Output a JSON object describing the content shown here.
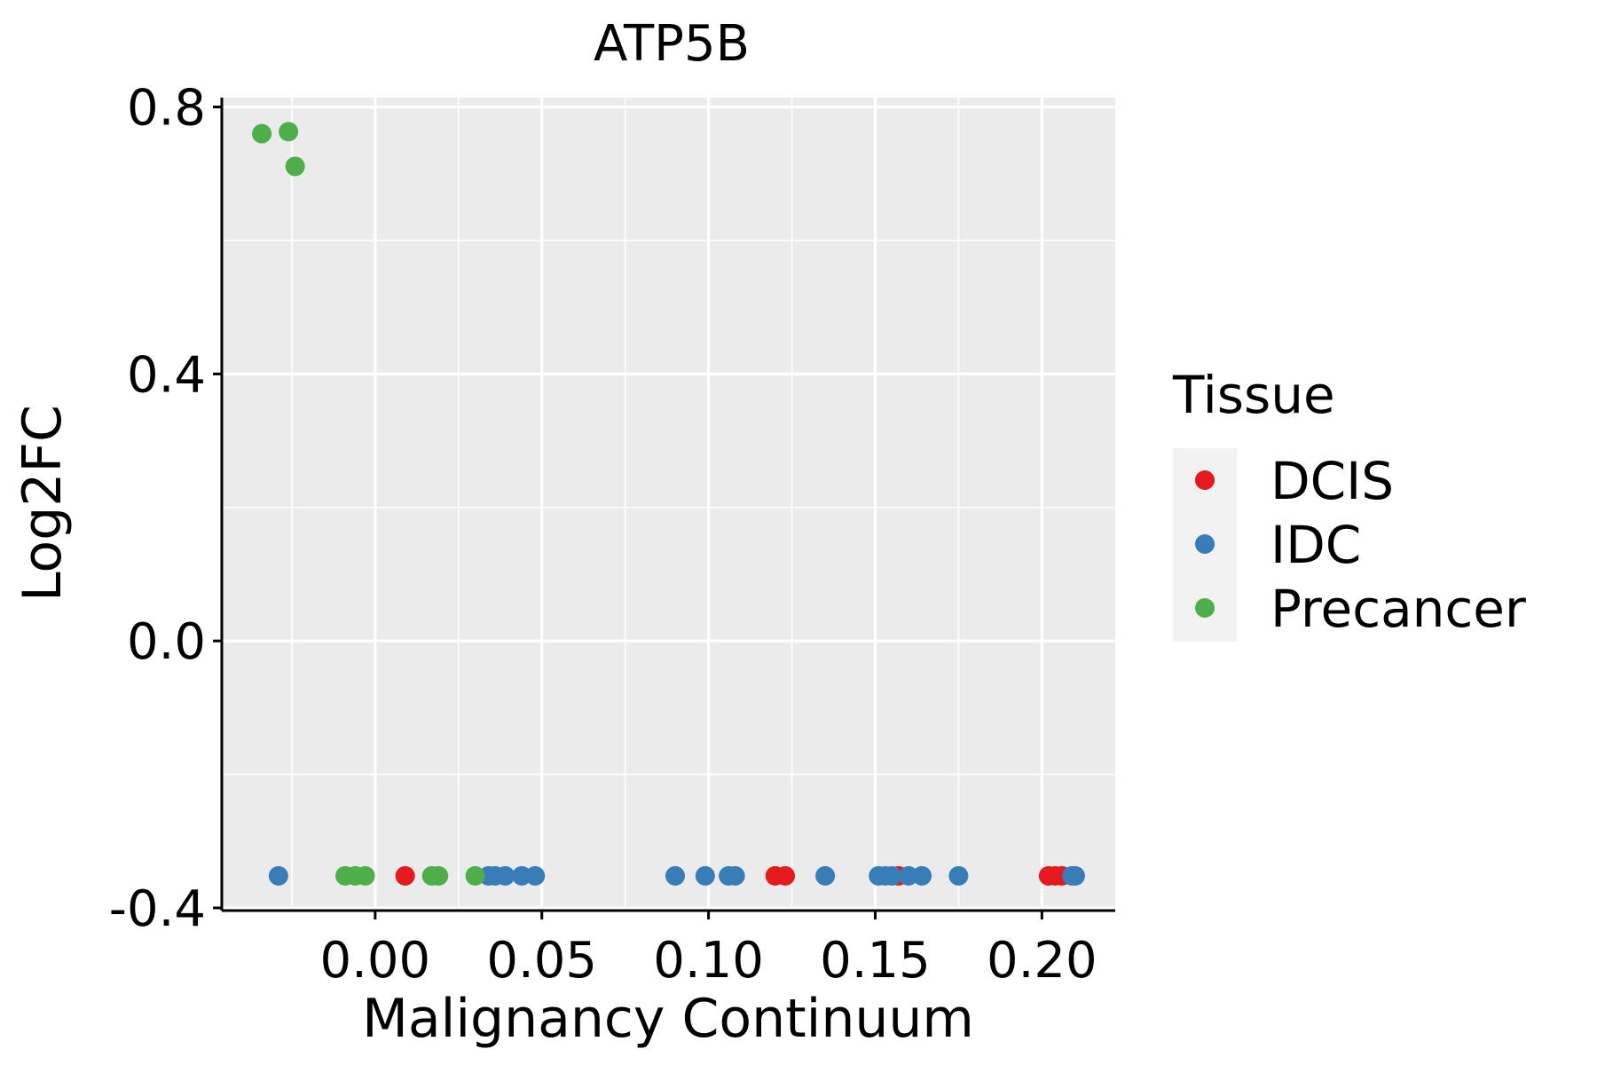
{
  "chart_data": {
    "type": "scatter",
    "title": "ATP5B",
    "xlabel": "Malignancy Continuum",
    "ylabel": "Log2FC",
    "xlim": [
      -0.046,
      0.222
    ],
    "ylim": [
      -0.404,
      0.814
    ],
    "x_ticks": [
      0.0,
      0.05,
      0.1,
      0.15,
      0.2
    ],
    "x_tick_labels": [
      "0.00",
      "0.05",
      "0.10",
      "0.15",
      "0.20"
    ],
    "y_ticks": [
      -0.4,
      0.0,
      0.4,
      0.8
    ],
    "y_tick_labels": [
      "-0.4",
      "0.0",
      "0.4",
      "0.8"
    ],
    "x_minor_ticks": [
      -0.025,
      0.025,
      0.075,
      0.125,
      0.175
    ],
    "y_minor_ticks": [
      -0.2,
      0.2,
      0.6
    ],
    "grid": true,
    "panel_background": "#ebebeb",
    "grid_color": "#ffffff",
    "legend": {
      "title": "Tissue",
      "position": "right",
      "background": "#f2f2f2"
    },
    "series": [
      {
        "name": "DCIS",
        "color": "#e41a1c",
        "x": [
          0.009,
          0.12,
          0.123,
          0.157,
          0.202,
          0.204,
          0.206
        ],
        "y": [
          -0.352,
          -0.352,
          -0.352,
          -0.352,
          -0.352,
          -0.352,
          -0.352
        ]
      },
      {
        "name": "IDC",
        "color": "#377eb8",
        "x": [
          -0.029,
          0.034,
          0.036,
          0.039,
          0.044,
          0.048,
          0.09,
          0.099,
          0.106,
          0.108,
          0.135,
          0.151,
          0.153,
          0.155,
          0.16,
          0.164,
          0.175,
          0.209,
          0.21
        ],
        "y": [
          -0.352,
          -0.352,
          -0.352,
          -0.352,
          -0.352,
          -0.352,
          -0.352,
          -0.352,
          -0.352,
          -0.352,
          -0.352,
          -0.352,
          -0.352,
          -0.352,
          -0.352,
          -0.352,
          -0.352,
          -0.352,
          -0.352
        ]
      },
      {
        "name": "Precancer",
        "color": "#4daf4a",
        "x": [
          -0.034,
          -0.026,
          -0.024,
          -0.009,
          -0.006,
          -0.003,
          0.017,
          0.019,
          0.03
        ],
        "y": [
          0.76,
          0.763,
          0.711,
          -0.352,
          -0.352,
          -0.352,
          -0.352,
          -0.352,
          -0.352
        ]
      }
    ]
  }
}
